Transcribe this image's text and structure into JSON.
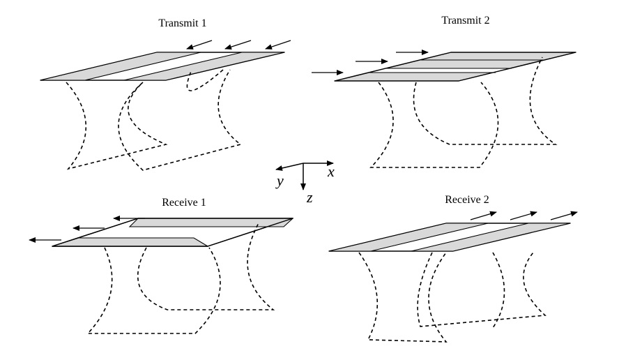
{
  "panels": {
    "transmit1": {
      "title": "Transmit 1"
    },
    "transmit2": {
      "title": "Transmit 2"
    },
    "receive1": {
      "title": "Receive 1"
    },
    "receive2": {
      "title": "Receive 2"
    }
  },
  "axes": {
    "x_label": "x",
    "y_label": "y",
    "z_label": "z"
  },
  "colors": {
    "strip_fill": "#d9d9d9",
    "line": "#000000",
    "background": "#ffffff"
  }
}
